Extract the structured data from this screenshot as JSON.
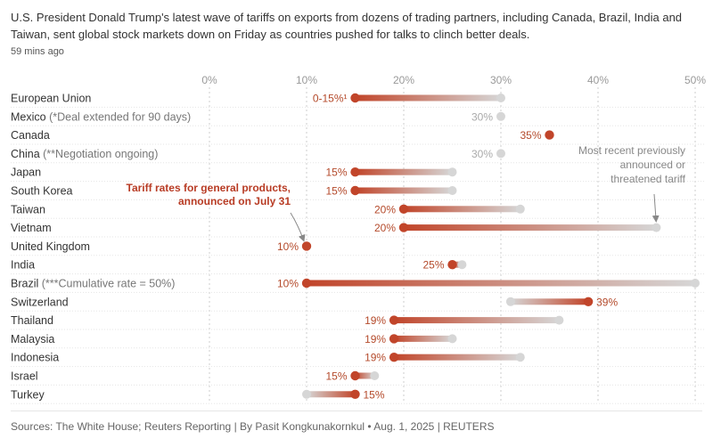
{
  "headline": "U.S. President Donald Trump's latest wave of tariffs on exports from dozens of trading partners, including Canada, Brazil, India and Taiwan, sent global stock markets down on Friday as countries pushed for talks to clinch better deals.",
  "timestamp": "59 mins ago",
  "footer": "Sources: The White House; Reuters Reporting | By Pasit Kongkunakornkul • Aug. 1, 2025 | REUTERS",
  "colors": {
    "current": "#c1452a",
    "previous": "#d6d6d6",
    "annotation_red": "#b83c25"
  },
  "chart_data": {
    "type": "dumbbell",
    "xlim": [
      0,
      50
    ],
    "xticks": [
      0,
      10,
      20,
      30,
      40,
      50
    ],
    "x_tick_labels": [
      "0%",
      "10%",
      "20%",
      "30%",
      "40%",
      "50%"
    ],
    "series": [
      {
        "name": "Tariff rates for general products, announced on July 31",
        "color": "#c1452a"
      },
      {
        "name": "Most recent previously announced or threatened tariff",
        "color": "#d6d6d6"
      }
    ],
    "rows": [
      {
        "country": "European Union",
        "note": "",
        "current": 15,
        "previous": 30,
        "label": "0-15%¹",
        "label_side": "left"
      },
      {
        "country": "Mexico",
        "note": " (*Deal extended for 90 days)",
        "current": null,
        "previous": 30,
        "label": "30%",
        "label_side": "left"
      },
      {
        "country": "Canada",
        "note": "",
        "current": 35,
        "previous": null,
        "label": "35%",
        "label_side": "left"
      },
      {
        "country": "China",
        "note": " (**Negotiation ongoing)",
        "current": null,
        "previous": 30,
        "label": "30%",
        "label_side": "left"
      },
      {
        "country": "Japan",
        "note": "",
        "current": 15,
        "previous": 25,
        "label": "15%",
        "label_side": "left"
      },
      {
        "country": "South Korea",
        "note": "",
        "current": 15,
        "previous": 25,
        "label": "15%",
        "label_side": "left"
      },
      {
        "country": "Taiwan",
        "note": "",
        "current": 20,
        "previous": 32,
        "label": "20%",
        "label_side": "left"
      },
      {
        "country": "Vietnam",
        "note": "",
        "current": 20,
        "previous": 46,
        "label": "20%",
        "label_side": "left"
      },
      {
        "country": "United Kingdom",
        "note": "",
        "current": 10,
        "previous": 10,
        "label": "10%",
        "label_side": "left"
      },
      {
        "country": "India",
        "note": "",
        "current": 25,
        "previous": 26,
        "label": "25%",
        "label_side": "left"
      },
      {
        "country": "Brazil",
        "note": " (***Cumulative rate = 50%)",
        "current": 10,
        "previous": 50,
        "label": "10%",
        "label_side": "left"
      },
      {
        "country": "Switzerland",
        "note": "",
        "current": 39,
        "previous": 31,
        "label": "39%",
        "label_side": "right"
      },
      {
        "country": "Thailand",
        "note": "",
        "current": 19,
        "previous": 36,
        "label": "19%",
        "label_side": "left"
      },
      {
        "country": "Malaysia",
        "note": "",
        "current": 19,
        "previous": 25,
        "label": "19%",
        "label_side": "left"
      },
      {
        "country": "Indonesia",
        "note": "",
        "current": 19,
        "previous": 32,
        "label": "19%",
        "label_side": "left"
      },
      {
        "country": "Israel",
        "note": "",
        "current": 15,
        "previous": 17,
        "label": "15%",
        "label_side": "left"
      },
      {
        "country": "Turkey",
        "note": "",
        "current": 15,
        "previous": 10,
        "label": "15%",
        "label_side": "right"
      }
    ],
    "annotations": {
      "current": [
        "Tariff rates for general products,",
        "announced on July 31"
      ],
      "previous": [
        "Most recent previously",
        "announced or",
        "threatened tariff"
      ]
    }
  }
}
